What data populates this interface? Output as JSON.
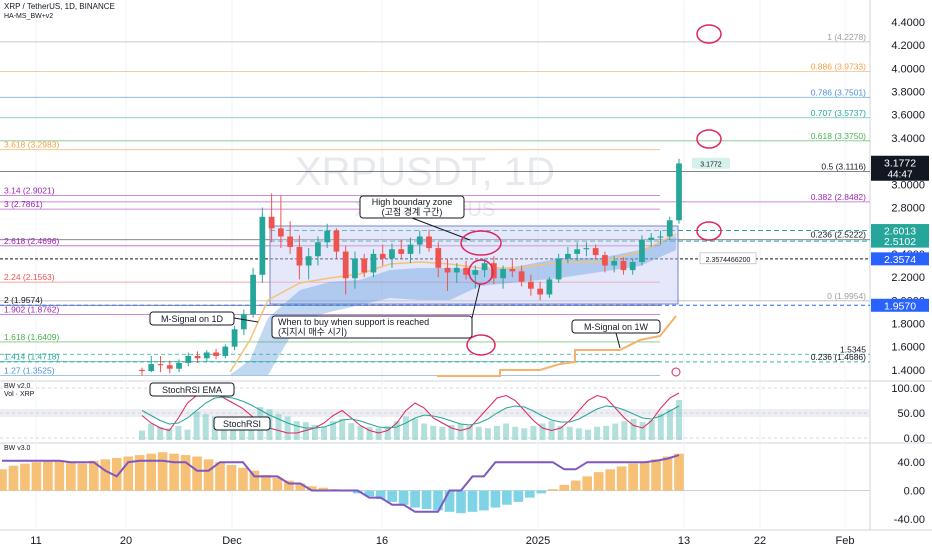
{
  "header": {
    "symbol_line": "XRP / TetherUS, 1D, BINANCE",
    "indicator_line": "HA-MS_BW+v2"
  },
  "watermark": {
    "symbol": "XRPUSDT, 1D",
    "name": "XRP / TetherUS"
  },
  "colors": {
    "up_candle": "#26a69a",
    "down_candle": "#ef5350",
    "fib_orange": "#f2a14a",
    "fib_green": "#4caf50",
    "fib_blue": "#4d8fd6",
    "fib_purple": "#9c27b0",
    "price_tag": "#131722",
    "zone_fill": "#b8c4f0",
    "circle": "#e0245e",
    "macd_pos": "#f6c177",
    "macd_neg": "#7fd3e6"
  },
  "chart_data": [
    {
      "type": "candlestick",
      "title": "XRP / TetherUS, 1D, BINANCE",
      "x_tick_labels": [
        "11",
        "20",
        "Dec",
        "16",
        "2025",
        "13",
        "22",
        "Feb"
      ],
      "y_tick_labels": [
        "4.4000",
        "4.2000",
        "4.0000",
        "3.8000",
        "3.6000",
        "3.4000",
        "3.2000",
        "3.0000",
        "2.8000",
        "2.6000",
        "2.4000",
        "2.2000",
        "2.0000",
        "1.8000",
        "1.6000",
        "1.4000"
      ],
      "ylim": [
        1.33,
        4.52
      ],
      "current_price": "3.1772",
      "countdown": "44:47",
      "price_labels": [
        {
          "value": 2.6013,
          "label": "2.6013",
          "color": "#26a69a"
        },
        {
          "value": 2.5102,
          "label": "2.5102",
          "color": "#26a69a"
        },
        {
          "value": 2.3574,
          "label": "2.3574",
          "color": "#2962ff"
        },
        {
          "value": 1.957,
          "label": "1.9570",
          "color": "#2962ff"
        }
      ],
      "dashed_level_label": "2.3574466200",
      "fib_right": [
        {
          "value": 4.2278,
          "label": "1 (4.2278)",
          "color": "#9e9e9e"
        },
        {
          "value": 3.9733,
          "label": "0.886 (3.9733)",
          "color": "#f2a14a"
        },
        {
          "value": 3.7501,
          "label": "0.786 (3.7501)",
          "color": "#4d8fd6"
        },
        {
          "value": 3.5737,
          "label": "0.707 (3.5737)",
          "color": "#26a69a"
        },
        {
          "value": 3.375,
          "label": "0.618 (3.3750)",
          "color": "#4caf50"
        },
        {
          "value": 3.1116,
          "label": "0.5 (3.1116)",
          "color": "#131722"
        },
        {
          "value": 2.8482,
          "label": "0.382 (2.8482)",
          "color": "#9c27b0"
        },
        {
          "value": 2.5222,
          "label": "0.236 (2.5222)",
          "color": "#131722"
        },
        {
          "value": 1.9954,
          "label": "0 (1.9954)",
          "color": "#9e9e9e"
        }
      ],
      "fib_left": [
        {
          "value": 3.2983,
          "label": "3.618 (3.2983)",
          "color": "#f2a14a"
        },
        {
          "value": 2.9021,
          "label": "3.14 (2.9021)",
          "color": "#9c27b0"
        },
        {
          "value": 2.7861,
          "label": "3 (2.7861)",
          "color": "#9c27b0"
        },
        {
          "value": 2.4696,
          "label": "2.618 (2.4696)",
          "color": "#9c27b0"
        },
        {
          "value": 2.1563,
          "label": "2.24 (2.1563)",
          "color": "#ef5350"
        },
        {
          "value": 1.9574,
          "label": "2 (1.9574)",
          "color": "#131722"
        },
        {
          "value": 1.8762,
          "label": "1.902 (1.8762)",
          "color": "#9c27b0"
        },
        {
          "value": 1.6409,
          "label": "1.618 (1.6409)",
          "color": "#4caf50"
        },
        {
          "value": 1.4718,
          "label": "1.414 (1.4718)",
          "color": "#26a69a"
        },
        {
          "value": 1.3525,
          "label": "1.27 (1.3525)",
          "color": "#4d8fd6"
        }
      ],
      "extra_levels": [
        {
          "value": 1.5345,
          "label": "1.5345",
          "color": "#131722"
        },
        {
          "value": 1.4686,
          "label": "0.236 (1.4686)",
          "color": "#131722"
        }
      ],
      "annotations": {
        "high_zone": "High boundary zone\n(고점 경계 구간)",
        "buy_zone": "When to buy when support is reached\n(지지시 매수 시기)",
        "msignal_1d": "M-Signal on 1D",
        "msignal_1w": "M-Signal on 1W"
      },
      "candles": [
        [
          1.4,
          1.42,
          1.35,
          1.39
        ],
        [
          1.39,
          1.52,
          1.38,
          1.45
        ],
        [
          1.45,
          1.52,
          1.38,
          1.44
        ],
        [
          1.44,
          1.48,
          1.37,
          1.41
        ],
        [
          1.41,
          1.49,
          1.38,
          1.46
        ],
        [
          1.46,
          1.55,
          1.43,
          1.52
        ],
        [
          1.52,
          1.56,
          1.46,
          1.5
        ],
        [
          1.5,
          1.57,
          1.47,
          1.55
        ],
        [
          1.55,
          1.58,
          1.49,
          1.52
        ],
        [
          1.52,
          1.62,
          1.5,
          1.6
        ],
        [
          1.6,
          1.78,
          1.57,
          1.75
        ],
        [
          1.75,
          1.92,
          1.7,
          1.88
        ],
        [
          1.88,
          2.28,
          1.85,
          2.22
        ],
        [
          2.22,
          2.8,
          2.15,
          2.72
        ],
        [
          2.72,
          2.92,
          2.5,
          2.62
        ],
        [
          2.62,
          2.9,
          2.45,
          2.55
        ],
        [
          2.55,
          2.68,
          2.4,
          2.46
        ],
        [
          2.46,
          2.56,
          2.18,
          2.3
        ],
        [
          2.3,
          2.45,
          2.18,
          2.38
        ],
        [
          2.38,
          2.55,
          2.3,
          2.5
        ],
        [
          2.5,
          2.66,
          2.45,
          2.6
        ],
        [
          2.6,
          2.62,
          2.36,
          2.42
        ],
        [
          2.42,
          2.47,
          2.05,
          2.19
        ],
        [
          2.19,
          2.42,
          2.1,
          2.36
        ],
        [
          2.36,
          2.4,
          2.2,
          2.24
        ],
        [
          2.24,
          2.44,
          2.2,
          2.4
        ],
        [
          2.4,
          2.48,
          2.3,
          2.36
        ],
        [
          2.36,
          2.49,
          2.28,
          2.44
        ],
        [
          2.44,
          2.52,
          2.36,
          2.4
        ],
        [
          2.4,
          2.54,
          2.32,
          2.48
        ],
        [
          2.48,
          2.6,
          2.4,
          2.55
        ],
        [
          2.55,
          2.61,
          2.42,
          2.45
        ],
        [
          2.45,
          2.5,
          2.2,
          2.28
        ],
        [
          2.28,
          2.36,
          2.08,
          2.24
        ],
        [
          2.24,
          2.32,
          2.15,
          2.28
        ],
        [
          2.28,
          2.34,
          2.18,
          2.22
        ],
        [
          2.22,
          2.3,
          2.1,
          2.26
        ],
        [
          2.26,
          2.36,
          2.2,
          2.32
        ],
        [
          2.32,
          2.38,
          2.14,
          2.19
        ],
        [
          2.19,
          2.3,
          2.1,
          2.27
        ],
        [
          2.27,
          2.35,
          2.2,
          2.25
        ],
        [
          2.25,
          2.3,
          2.12,
          2.16
        ],
        [
          2.16,
          2.22,
          2.04,
          2.1
        ],
        [
          2.1,
          2.16,
          2.0,
          2.05
        ],
        [
          2.05,
          2.2,
          2.02,
          2.18
        ],
        [
          2.18,
          2.4,
          2.15,
          2.36
        ],
        [
          2.36,
          2.46,
          2.32,
          2.4
        ],
        [
          2.4,
          2.5,
          2.34,
          2.44
        ],
        [
          2.44,
          2.5,
          2.38,
          2.45
        ],
        [
          2.45,
          2.48,
          2.35,
          2.39
        ],
        [
          2.39,
          2.42,
          2.24,
          2.3
        ],
        [
          2.3,
          2.38,
          2.24,
          2.34
        ],
        [
          2.34,
          2.37,
          2.22,
          2.26
        ],
        [
          2.26,
          2.36,
          2.22,
          2.33
        ],
        [
          2.33,
          2.56,
          2.3,
          2.52
        ],
        [
          2.52,
          2.58,
          2.46,
          2.54
        ],
        [
          2.54,
          2.6,
          2.48,
          2.55
        ],
        [
          2.55,
          2.72,
          2.52,
          2.69
        ],
        [
          2.69,
          3.22,
          2.66,
          3.18
        ]
      ]
    },
    {
      "type": "line",
      "title": "BW v2.0",
      "subtitle": "Vol · XRP",
      "y_tick_labels": [
        "100.00",
        "50.00",
        "0.00"
      ],
      "ylim": [
        -4,
        108
      ],
      "annotations": {
        "stoch_ema": "StochRSI EMA",
        "stoch": "StochRSI"
      },
      "series": [
        {
          "name": "StochRSI",
          "color": "#e0245e",
          "values": [
            45,
            30,
            20,
            15,
            40,
            70,
            85,
            95,
            90,
            80,
            70,
            60,
            45,
            30,
            20,
            15,
            10,
            10,
            15,
            20,
            30,
            45,
            55,
            40,
            25,
            15,
            10,
            15,
            30,
            55,
            70,
            60,
            40,
            30,
            20,
            15,
            20,
            40,
            60,
            80,
            85,
            75,
            55,
            35,
            20,
            15,
            20,
            35,
            55,
            75,
            85,
            80,
            60,
            40,
            25,
            20,
            35,
            60,
            80,
            90
          ]
        },
        {
          "name": "StochRSI EMA",
          "color": "#26a69a",
          "values": [
            55,
            45,
            35,
            28,
            30,
            40,
            55,
            70,
            80,
            82,
            80,
            74,
            66,
            56,
            46,
            38,
            30,
            24,
            20,
            20,
            22,
            28,
            36,
            38,
            34,
            28,
            22,
            20,
            22,
            30,
            40,
            46,
            44,
            40,
            34,
            28,
            26,
            30,
            38,
            50,
            60,
            64,
            62,
            54,
            44,
            36,
            32,
            32,
            38,
            48,
            58,
            64,
            62,
            56,
            48,
            40,
            38,
            44,
            54,
            64
          ]
        }
      ],
      "volume": [
        20,
        35,
        28,
        25,
        30,
        22,
        60,
        55,
        50,
        40,
        35,
        30,
        45,
        70,
        65,
        55,
        50,
        40,
        38,
        32,
        28,
        40,
        45,
        36,
        30,
        28,
        25,
        30,
        40,
        50,
        45,
        35,
        30,
        28,
        32,
        35,
        30,
        28,
        25,
        30,
        35,
        28,
        25,
        30,
        35,
        40,
        30,
        28,
        25,
        22,
        28,
        30,
        35,
        40,
        45,
        38,
        42,
        55,
        65,
        85
      ]
    },
    {
      "type": "bar",
      "title": "BW v3.0",
      "y_tick_labels": [
        "40.00",
        "0.00",
        "-40.00"
      ],
      "ylim": [
        -50,
        60
      ],
      "series": [
        {
          "name": "BW v3.0",
          "values": [
            30,
            35,
            38,
            40,
            42,
            42,
            40,
            38,
            42,
            44,
            46,
            48,
            50,
            52,
            54,
            52,
            50,
            48,
            44,
            40,
            36,
            32,
            28,
            22,
            18,
            14,
            10,
            6,
            4,
            2,
            0,
            -4,
            -8,
            -12,
            -16,
            -20,
            -24,
            -26,
            -28,
            -30,
            -32,
            -30,
            -28,
            -24,
            -20,
            -16,
            -10,
            -4,
            2,
            8,
            14,
            20,
            26,
            30,
            34,
            38,
            40,
            44,
            48,
            52
          ]
        },
        {
          "name": "BW line",
          "color": "#7e57c2",
          "values": [
            42,
            42,
            42,
            42,
            42,
            42,
            40,
            40,
            40,
            28,
            20,
            40,
            42,
            42,
            42,
            40,
            40,
            28,
            28,
            40,
            40,
            40,
            20,
            20,
            20,
            10,
            10,
            0,
            0,
            0,
            0,
            0,
            -10,
            -10,
            -20,
            -20,
            -30,
            -30,
            -30,
            0,
            0,
            20,
            20,
            40,
            40,
            40,
            40,
            40,
            40,
            30,
            30,
            40,
            40,
            40,
            40,
            40,
            40,
            42,
            45,
            50
          ]
        }
      ]
    }
  ]
}
